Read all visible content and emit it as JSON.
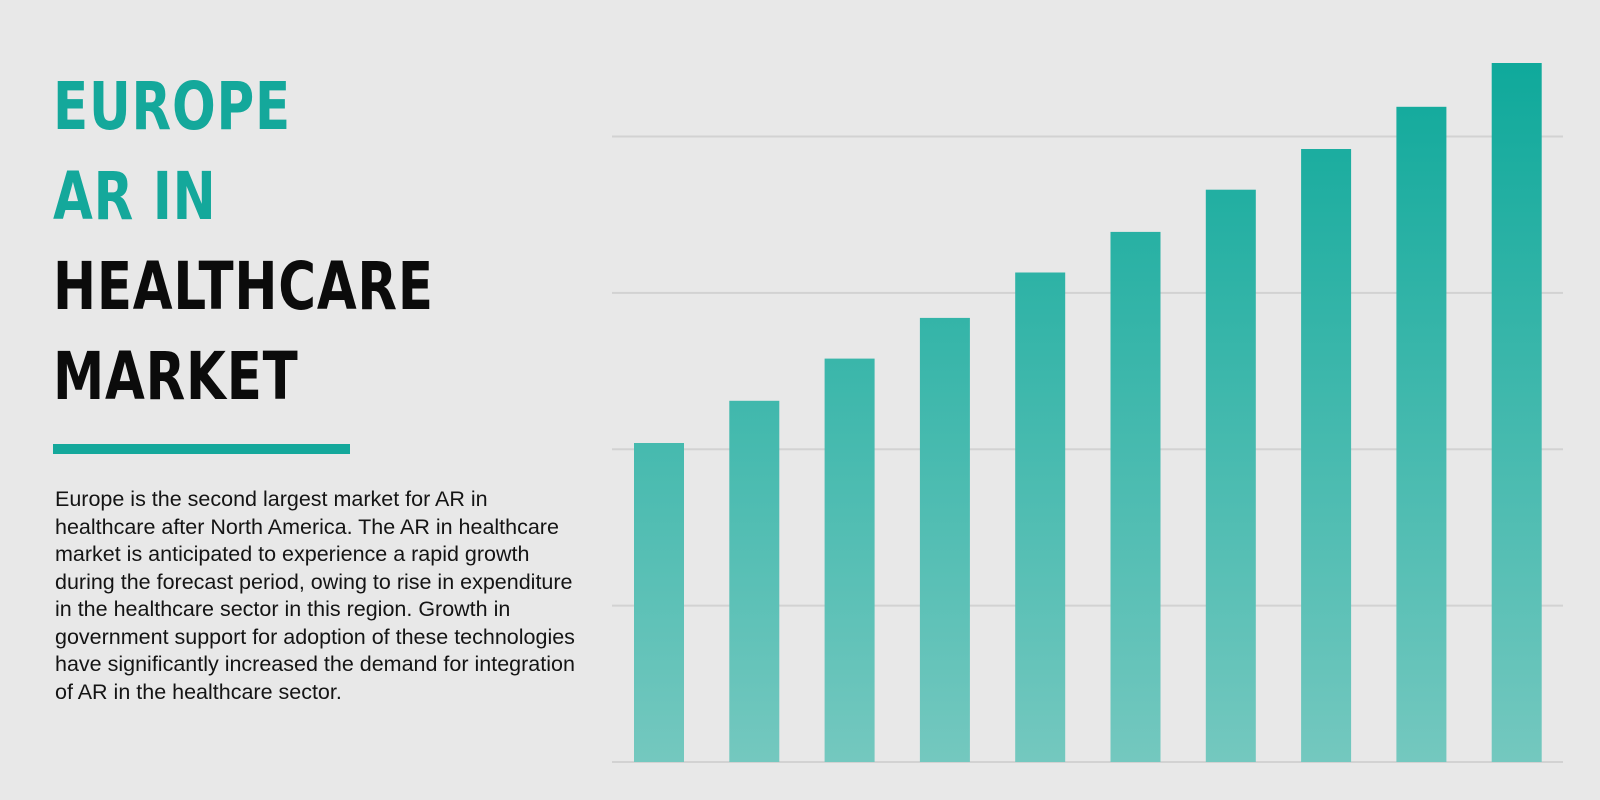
{
  "title": {
    "accent_lines": [
      "EUROPE",
      "AR IN"
    ],
    "dark_lines": [
      "HEALTHCARE",
      "MARKET"
    ]
  },
  "description": "Europe is the second largest market for AR in healthcare after North America. The AR in healthcare market is anticipated to experience a rapid growth during the forecast period, owing to rise in expenditure in the healthcare sector in this region. Growth in government support for adoption of these technologies have significantly increased the demand for integration of AR in the healthcare sector.",
  "colors": {
    "accent": "#14a89b",
    "bar_top": "#0fa99b",
    "bar_bottom": "#74c8bf",
    "gridline": "#d2d2d2"
  },
  "chart_data": {
    "type": "bar",
    "title": "",
    "xlabel": "",
    "ylabel": "",
    "categories": [
      "",
      "",
      "",
      "",
      "",
      "",
      "",
      "",
      "",
      ""
    ],
    "values": [
      2.04,
      2.31,
      2.58,
      2.84,
      3.13,
      3.39,
      3.66,
      3.92,
      4.19,
      4.47
    ],
    "ylim": [
      0,
      4.47
    ],
    "grid": true,
    "y_gridlines": [
      0,
      1,
      2,
      3,
      4
    ],
    "legend": "none"
  }
}
